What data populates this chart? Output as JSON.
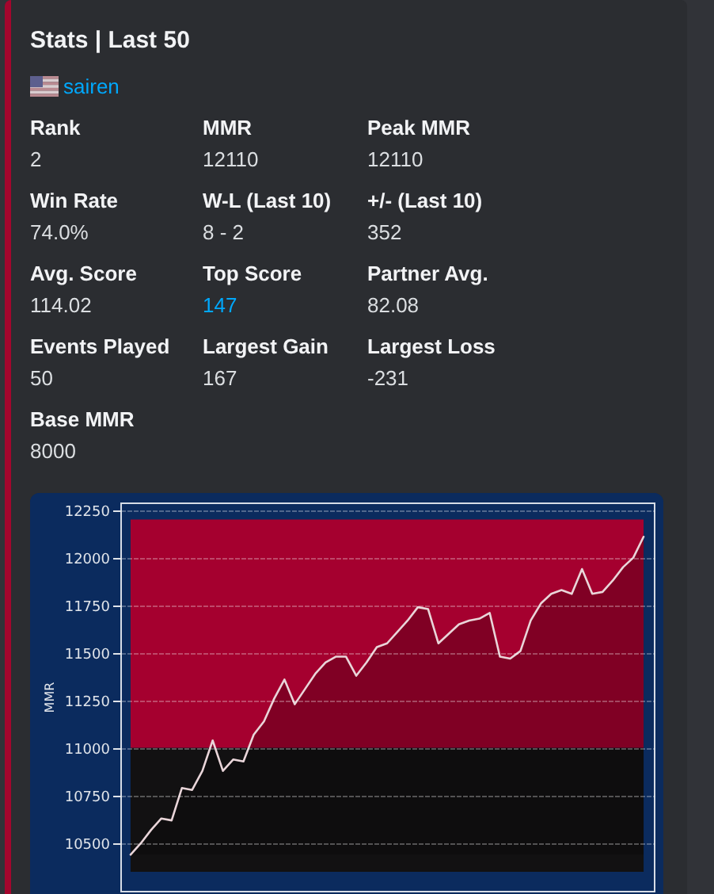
{
  "chart_data": [
    {
      "type": "other",
      "title": "Stats | Last 50",
      "annotations": [
        "sairen",
        "Rank",
        "2",
        "MMR",
        "12110",
        "Peak MMR",
        "12110",
        "Win Rate",
        "74.0%",
        "W-L (Last 10)",
        "8 - 2",
        "+/- (Last 10)",
        "352",
        "Avg. Score",
        "114.02",
        "Top Score",
        "147",
        "Partner Avg.",
        "82.08",
        "Events Played",
        "50",
        "Largest Gain",
        "167",
        "Largest Loss",
        "-231",
        "Base MMR",
        "8000"
      ]
    },
    {
      "type": "area",
      "ylabel": "MMR",
      "categories": [
        null,
        null,
        null,
        null,
        null,
        null,
        null,
        null,
        null,
        null,
        null,
        null,
        null,
        null,
        null,
        null,
        null,
        null,
        null,
        null,
        null,
        null,
        null,
        null,
        null,
        null,
        null,
        null,
        null,
        null,
        null,
        null,
        null,
        null,
        null,
        null,
        null,
        null,
        null,
        null,
        null,
        null,
        null,
        null,
        null,
        null,
        null,
        null,
        null,
        null,
        null
      ],
      "series": [
        {
          "color": "#e9d5d9",
          "values": [
            10440,
            10500,
            10570,
            10630,
            10620,
            10790,
            10780,
            10880,
            11040,
            10880,
            10940,
            10930,
            11070,
            11140,
            11260,
            11360,
            11230,
            11310,
            11390,
            11450,
            11480,
            11480,
            11380,
            11450,
            11530,
            11550,
            11610,
            11670,
            11740,
            11730,
            11550,
            11600,
            11650,
            11670,
            11680,
            11710,
            11480,
            11470,
            11510,
            11670,
            11760,
            11810,
            11830,
            11810,
            11940,
            11810,
            11820,
            11880,
            11950,
            12000,
            12110
          ]
        }
      ],
      "ylim": [
        10250,
        12290
      ],
      "yticks": [
        10500,
        10750,
        11000,
        11250,
        11500,
        11750,
        12000,
        12250
      ],
      "grid": "y",
      "bands": [
        {
          "axis": "y",
          "from": 11000,
          "to": 12200,
          "color": "#a5002f"
        },
        {
          "axis": "y",
          "from": 10350,
          "to": 11000,
          "color": "#121112"
        }
      ]
    }
  ]
}
